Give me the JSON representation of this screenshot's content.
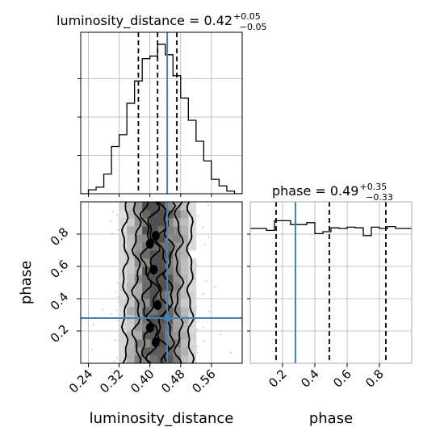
{
  "chart_data": [
    {
      "type": "histogram",
      "panel": "luminosity_distance-marginal",
      "title": {
        "param": "luminosity_distance",
        "median": "0.42",
        "plus": "+0.05",
        "minus": "−0.05"
      },
      "xlim": [
        0.22,
        0.64
      ],
      "bin_edges": [
        0.22,
        0.24,
        0.26,
        0.28,
        0.3,
        0.32,
        0.34,
        0.36,
        0.38,
        0.4,
        0.42,
        0.44,
        0.46,
        0.48,
        0.5,
        0.52,
        0.54,
        0.56,
        0.58,
        0.6,
        0.62,
        0.64
      ],
      "counts": [
        0.0,
        0.3,
        0.5,
        1.5,
        3.6,
        4.5,
        6.9,
        8.6,
        10.3,
        10.5,
        11.4,
        10.6,
        9.0,
        7.3,
        5.6,
        4.0,
        2.5,
        1.1,
        0.6,
        0.2,
        0.0
      ],
      "quantile_lines": [
        0.37,
        0.42,
        0.47
      ],
      "truth": 0.445,
      "grid": true
    },
    {
      "type": "scatter-density",
      "panel": "luminosity_distance-vs-phase",
      "xlabel": "luminosity_distance",
      "ylabel": "phase",
      "xlim": [
        0.22,
        0.64
      ],
      "ylim": [
        0.0,
        1.0
      ],
      "xticks": [
        "0.24",
        "0.32",
        "0.40",
        "0.48",
        "0.56"
      ],
      "xtick_values": [
        0.24,
        0.32,
        0.4,
        0.48,
        0.56
      ],
      "yticks": [
        "0.2",
        "0.4",
        "0.6",
        "0.8"
      ],
      "ytick_values": [
        0.2,
        0.4,
        0.6,
        0.8
      ],
      "truth": {
        "x": 0.445,
        "y": 0.28
      },
      "grid": true
    },
    {
      "type": "histogram",
      "panel": "phase-marginal",
      "title": {
        "param": "phase",
        "median": "0.49",
        "plus": "+0.35",
        "minus": "−0.33"
      },
      "xlabel": "phase",
      "xlim": [
        0.0,
        1.0
      ],
      "xticks": [
        "0.2",
        "0.4",
        "0.6",
        "0.8"
      ],
      "xtick_values": [
        0.2,
        0.4,
        0.6,
        0.8
      ],
      "bin_edges": [
        0.0,
        0.05,
        0.1,
        0.15,
        0.2,
        0.25,
        0.3,
        0.35,
        0.4,
        0.45,
        0.5,
        0.55,
        0.6,
        0.65,
        0.7,
        0.75,
        0.8,
        0.85,
        0.9,
        0.95,
        1.0
      ],
      "counts": [
        1.0,
        1.0,
        0.97,
        1.12,
        1.12,
        1.06,
        1.06,
        1.09,
        0.92,
        0.95,
        1.01,
        1.0,
        1.02,
        1.01,
        0.89,
        1.02,
        1.0,
        1.03,
        1.0,
        1.0
      ],
      "ylim": [
        0,
        5.2
      ],
      "quantile_lines": [
        0.16,
        0.49,
        0.84
      ],
      "truth": 0.28,
      "grid": true
    }
  ],
  "colors": {
    "truth": "#4682b4",
    "hist": "#000000",
    "grid": "#b0b0b0",
    "scatter": "#999999"
  }
}
